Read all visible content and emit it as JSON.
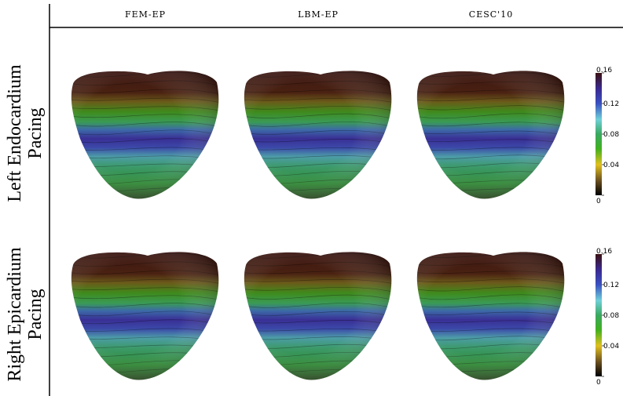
{
  "columns": [
    "FEM-EP",
    "LBM-EP",
    "CESC'10"
  ],
  "rows": [
    {
      "label_lines": [
        "Left Endocardium",
        "Pacing"
      ],
      "colorbar_ticks": [
        "0.16",
        "0.12",
        "0.08",
        "0.04",
        "0"
      ]
    },
    {
      "label_lines": [
        "Right Epicardium",
        "Pacing"
      ],
      "colorbar_ticks": [
        "0.16",
        "0.12",
        "0.08",
        "0.04",
        "0"
      ]
    }
  ]
}
